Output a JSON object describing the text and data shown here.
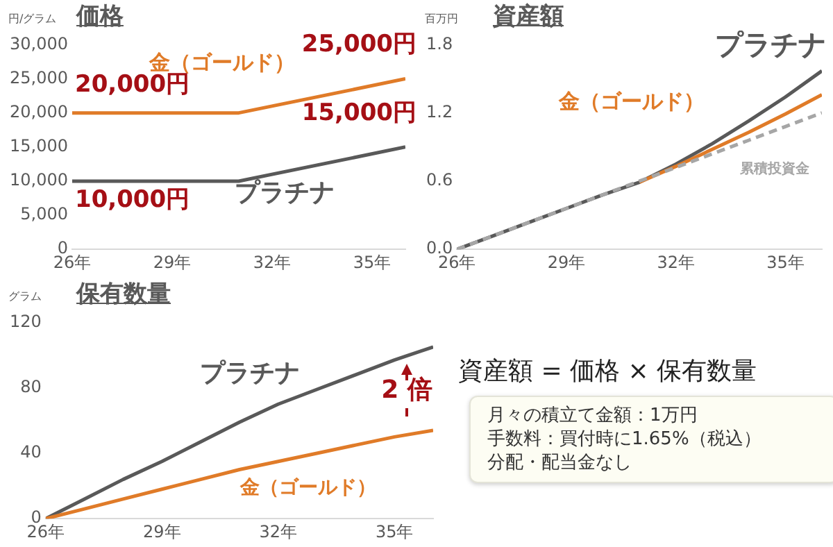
{
  "chart_data": [
    {
      "type": "line",
      "title": "価格",
      "ylabel": "円/グラム",
      "x": [
        26,
        31,
        36
      ],
      "xlim": [
        26,
        36
      ],
      "xticks": [
        {
          "value": 26,
          "label": "26年"
        },
        {
          "value": 29,
          "label": "29年"
        },
        {
          "value": 32,
          "label": "32年"
        },
        {
          "value": 35,
          "label": "35年"
        }
      ],
      "ylim": [
        0,
        30000
      ],
      "yticks": [
        0,
        {
          "value": 5000,
          "label": "5,000"
        },
        {
          "value": 10000,
          "label": "10,000"
        },
        {
          "value": 15000,
          "label": "15,000"
        },
        {
          "value": 20000,
          "label": "20,000"
        },
        {
          "value": 25000,
          "label": "25,000"
        },
        {
          "value": 30000,
          "label": "30,000"
        }
      ],
      "series": [
        {
          "name": "金（ゴールド）",
          "color": "#e07b28",
          "values": [
            20000,
            20000,
            25000
          ],
          "value_labels": [
            "20,000円",
            null,
            "25,000円"
          ]
        },
        {
          "name": "プラチナ",
          "color": "#595959",
          "values": [
            10000,
            10000,
            15000
          ],
          "value_labels": [
            "10,000円",
            null,
            "15,000円"
          ]
        }
      ]
    },
    {
      "type": "line",
      "title": "資産額",
      "ylabel": "百万円",
      "x": [
        26,
        27,
        28,
        29,
        30,
        31,
        32,
        33,
        34,
        35,
        36
      ],
      "xlim": [
        26,
        36
      ],
      "xticks": [
        {
          "value": 26,
          "label": "26年"
        },
        {
          "value": 29,
          "label": "29年"
        },
        {
          "value": 32,
          "label": "32年"
        },
        {
          "value": 35,
          "label": "35年"
        }
      ],
      "ylim": [
        0,
        1.8
      ],
      "yticks": [
        {
          "value": 0,
          "label": "0.0"
        },
        0.6,
        1.2,
        1.8
      ],
      "series": [
        {
          "name": "プラチナ",
          "color": "#595959",
          "values": [
            0,
            0.12,
            0.24,
            0.36,
            0.48,
            0.59,
            0.75,
            0.93,
            1.13,
            1.34,
            1.57
          ]
        },
        {
          "name": "金（ゴールド）",
          "color": "#e07b28",
          "values": [
            null,
            null,
            null,
            null,
            null,
            0.59,
            0.73,
            0.88,
            1.03,
            1.19,
            1.36
          ]
        },
        {
          "name": "累積投資金",
          "color": "#a6a6a6",
          "line_style": "dashed",
          "values": [
            0,
            0.12,
            0.24,
            0.36,
            0.48,
            0.6,
            0.72,
            0.84,
            0.96,
            1.08,
            1.2
          ]
        }
      ]
    },
    {
      "type": "line",
      "title": "保有数量",
      "ylabel": "グラム",
      "x": [
        26,
        27,
        28,
        29,
        30,
        31,
        32,
        33,
        34,
        35,
        36
      ],
      "xlim": [
        26,
        36
      ],
      "xticks": [
        {
          "value": 26,
          "label": "26年"
        },
        {
          "value": 29,
          "label": "29年"
        },
        {
          "value": 32,
          "label": "32年"
        },
        {
          "value": 35,
          "label": "35年"
        }
      ],
      "ylim": [
        0,
        120
      ],
      "yticks": [
        0,
        40,
        80,
        120
      ],
      "series": [
        {
          "name": "プラチナ",
          "color": "#595959",
          "values": [
            0,
            12,
            24,
            35,
            47,
            59,
            70,
            79,
            88,
            97,
            105
          ]
        },
        {
          "name": "金（ゴールド）",
          "color": "#e07b28",
          "values": [
            0,
            6,
            12,
            18,
            24,
            30,
            35,
            40,
            45,
            50,
            54
          ]
        }
      ],
      "annotations": [
        "2 倍"
      ]
    },
    {
      "type": "other",
      "title": "資産額 = 価格 × 保有数量",
      "annotations": [
        "月々の積立て金額：1万円",
        "手数料：買付時に1.65%（税込）",
        "分配・配当金なし"
      ]
    }
  ]
}
